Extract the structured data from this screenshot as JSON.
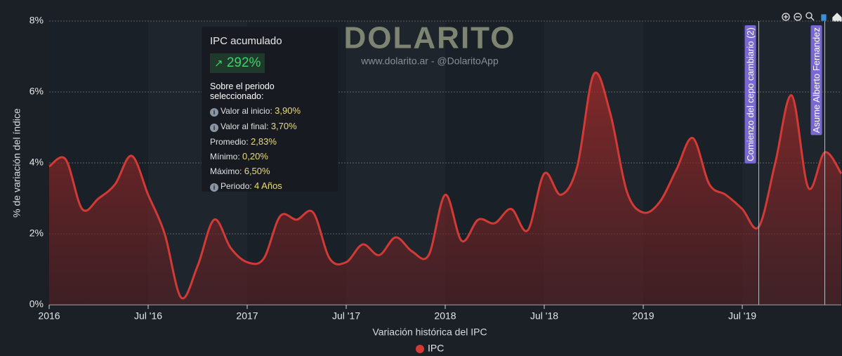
{
  "chart_data": {
    "type": "line",
    "title": "DOLARITO",
    "subtitle": "www.dolarito.ar - @DolaritoApp",
    "x_label": "Variación histórica del IPC",
    "y_label": "% de variación del índice",
    "x": [
      "2016-01",
      "2016-02",
      "2016-03",
      "2016-04",
      "2016-05",
      "2016-06",
      "2016-07",
      "2016-08",
      "2016-09",
      "2016-10",
      "2016-11",
      "2016-12",
      "2017-01",
      "2017-02",
      "2017-03",
      "2017-04",
      "2017-05",
      "2017-06",
      "2017-07",
      "2017-08",
      "2017-09",
      "2017-10",
      "2017-11",
      "2017-12",
      "2018-01",
      "2018-02",
      "2018-03",
      "2018-04",
      "2018-05",
      "2018-06",
      "2018-07",
      "2018-08",
      "2018-09",
      "2018-10",
      "2018-11",
      "2018-12",
      "2019-01",
      "2019-02",
      "2019-03",
      "2019-04",
      "2019-05",
      "2019-06",
      "2019-07",
      "2019-08",
      "2019-09",
      "2019-10",
      "2019-11",
      "2019-12",
      "2020-01"
    ],
    "series": [
      {
        "name": "IPC",
        "color": "#d23a35",
        "values": [
          3.9,
          4.1,
          2.7,
          3.0,
          3.4,
          4.2,
          3.1,
          2.0,
          0.2,
          1.1,
          2.4,
          1.6,
          1.2,
          1.3,
          2.5,
          2.4,
          2.6,
          1.3,
          1.2,
          1.7,
          1.4,
          1.9,
          1.5,
          1.4,
          3.1,
          1.8,
          2.4,
          2.3,
          2.7,
          2.1,
          3.7,
          3.1,
          3.9,
          6.5,
          5.4,
          3.2,
          2.6,
          2.9,
          3.8,
          4.7,
          3.4,
          3.1,
          2.7,
          2.2,
          4.0,
          5.9,
          3.3,
          4.3,
          3.7
        ]
      }
    ],
    "xlim": [
      "2016-01",
      "2020-01"
    ],
    "xticks": [
      {
        "value": "2016-01",
        "label": "2016"
      },
      {
        "value": "2016-07",
        "label": "Jul '16"
      },
      {
        "value": "2017-01",
        "label": "2017"
      },
      {
        "value": "2017-07",
        "label": "Jul '17"
      },
      {
        "value": "2018-01",
        "label": "2018"
      },
      {
        "value": "2018-07",
        "label": "Jul '18"
      },
      {
        "value": "2019-01",
        "label": "2019"
      },
      {
        "value": "2019-07",
        "label": "Jul '19"
      }
    ],
    "ylim": [
      0,
      8
    ],
    "yticks": [
      {
        "value": 0,
        "label": "0%"
      },
      {
        "value": 2,
        "label": "2%"
      },
      {
        "value": 4,
        "label": "4%"
      },
      {
        "value": 6,
        "label": "6%"
      },
      {
        "value": 8,
        "label": "8%"
      }
    ],
    "grid": true,
    "annotations": [
      {
        "x": "2019-08",
        "text": "Comienzo del cepo cambiario (2)"
      },
      {
        "x": "2019-12",
        "text": "Asume Alberto Fernandez"
      }
    ]
  },
  "stats_box": {
    "title": "IPC acumulado",
    "total": "292%",
    "subtitle": "Sobre el periodo seleccionado:",
    "rows": [
      [
        "Valor al inicio:",
        "3,90%"
      ],
      [
        "Valor al final:",
        "3,70%"
      ],
      [
        "Promedio:",
        "2,83%"
      ],
      [
        "Mínimo:",
        "0,20%"
      ],
      [
        "Máximo:",
        "6,50%"
      ],
      [
        "Periodo:",
        "4 Años"
      ]
    ]
  }
}
